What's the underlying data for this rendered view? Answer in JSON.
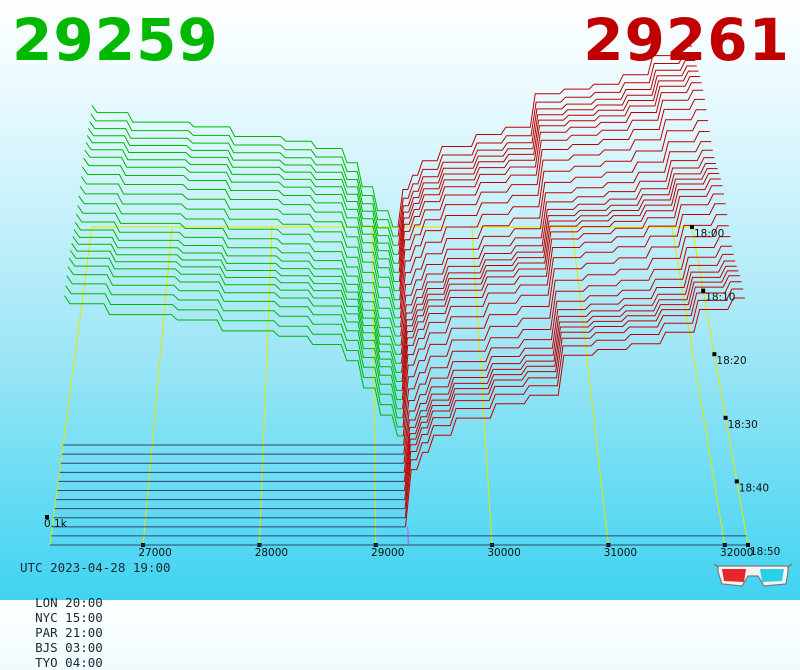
{
  "colors": {
    "bid": "#00b800",
    "ask": "#c00000",
    "grid": "#e6e600",
    "empty_depth": "#334466",
    "baseline": "#cc44ff"
  },
  "header": {
    "bid_price": "29259",
    "ask_price": "29261"
  },
  "footer": {
    "utc": "UTC 2023-04-28 19:00",
    "cities": [
      {
        "code": "LON",
        "time": "20:00"
      },
      {
        "code": "NYC",
        "time": "15:00"
      },
      {
        "code": "PAR",
        "time": "21:00"
      },
      {
        "code": "BJS",
        "time": "03:00"
      },
      {
        "code": "TYO",
        "time": "04:00"
      }
    ]
  },
  "glasses_icon": "3d-glasses-icon",
  "chart_data": {
    "type": "area",
    "chart": "3d order-book depth history",
    "x_ticks": [
      "27000",
      "28000",
      "29000",
      "30000",
      "31000",
      "32000"
    ],
    "x_tick_values": [
      27000,
      28000,
      29000,
      30000,
      31000,
      32000
    ],
    "xlim": [
      26200,
      32200
    ],
    "z_label": "0.1k",
    "time_labels": [
      "18:00",
      "18:10",
      "18:20",
      "18:30",
      "18:40",
      "18:50"
    ],
    "time_label_index": [
      0,
      6,
      12,
      18,
      24,
      30
    ],
    "mid_price": 29260,
    "series": [
      {
        "name": "bid",
        "side": "bid",
        "snapshots_with_data": 24,
        "steps": [
          {
            "price": 26200,
            "depth": 0.26
          },
          {
            "price": 26600,
            "depth": 0.245
          },
          {
            "price": 27200,
            "depth": 0.225
          },
          {
            "price": 27600,
            "depth": 0.215
          },
          {
            "price": 28100,
            "depth": 0.195
          },
          {
            "price": 28400,
            "depth": 0.185
          },
          {
            "price": 28700,
            "depth": 0.17
          },
          {
            "price": 28900,
            "depth": 0.14
          },
          {
            "price": 29050,
            "depth": 0.09
          },
          {
            "price": 29180,
            "depth": 0.04
          },
          {
            "price": 29259,
            "depth": 0.0
          }
        ]
      },
      {
        "name": "ask",
        "side": "ask",
        "snapshots_with_data": 34,
        "steps": [
          {
            "price": 29261,
            "depth": 0.0
          },
          {
            "price": 29300,
            "depth": 0.09
          },
          {
            "price": 29400,
            "depth": 0.12
          },
          {
            "price": 29500,
            "depth": 0.15
          },
          {
            "price": 29700,
            "depth": 0.18
          },
          {
            "price": 30000,
            "depth": 0.205
          },
          {
            "price": 30300,
            "depth": 0.22
          },
          {
            "price": 30600,
            "depth": 0.29
          },
          {
            "price": 30900,
            "depth": 0.3
          },
          {
            "price": 31200,
            "depth": 0.31
          },
          {
            "price": 31500,
            "depth": 0.33
          },
          {
            "price": 31800,
            "depth": 0.37
          },
          {
            "price": 32100,
            "depth": 0.39
          }
        ]
      }
    ]
  }
}
